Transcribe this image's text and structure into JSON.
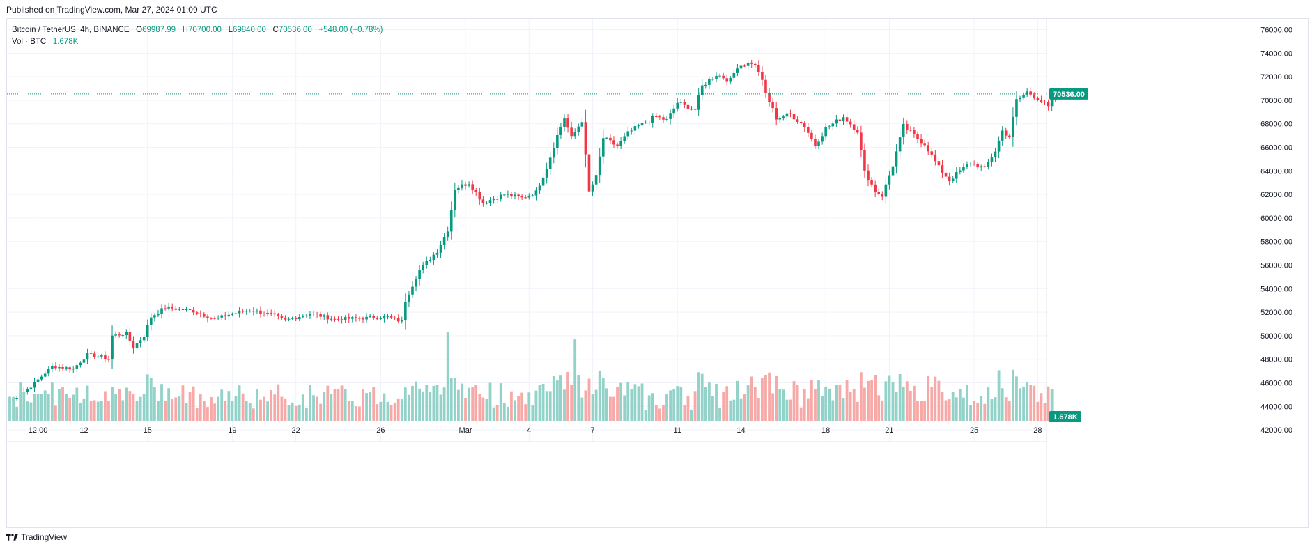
{
  "header": {
    "published_line": "Published on TradingView.com, Mar 27, 2024 01:09 UTC"
  },
  "legend": {
    "symbol": "Bitcoin / TetherUS, 4h, BINANCE",
    "open_label": "O",
    "open": "69987.99",
    "high_label": "H",
    "high": "70700.00",
    "low_label": "L",
    "low": "69840.00",
    "close_label": "C",
    "close": "70536.00",
    "change": "+548.00 (+0.78%)",
    "volume_label": "Vol · BTC",
    "volume": "1.678K"
  },
  "footer": {
    "brand": "TradingView"
  },
  "colors": {
    "up": "#089981",
    "down": "#f23645",
    "up_volume": "#92d2c8",
    "down_volume": "#f7a9a7",
    "grid": "#f0f3fa"
  },
  "chart_data": {
    "type": "candlestick",
    "interval": "4h",
    "price_range": [
      41000,
      76800
    ],
    "y_ticks": [
      42000,
      44000,
      46000,
      48000,
      50000,
      52000,
      54000,
      56000,
      58000,
      60000,
      62000,
      64000,
      66000,
      68000,
      70000,
      72000,
      74000,
      76000
    ],
    "y_tick_labels": [
      "42000.00",
      "44000.00",
      "46000.00",
      "48000.00",
      "50000.00",
      "52000.00",
      "54000.00",
      "56000.00",
      "58000.00",
      "60000.00",
      "62000.00",
      "64000.00",
      "66000.00",
      "68000.00",
      "70000.00",
      "72000.00",
      "74000.00",
      "76000.00"
    ],
    "x_ticks": [
      {
        "label": "12:00",
        "bar": 8
      },
      {
        "label": "12",
        "bar": 21
      },
      {
        "label": "15",
        "bar": 39
      },
      {
        "label": "19",
        "bar": 63
      },
      {
        "label": "22",
        "bar": 81
      },
      {
        "label": "26",
        "bar": 105
      },
      {
        "label": "Mar",
        "bar": 129
      },
      {
        "label": "4",
        "bar": 147
      },
      {
        "label": "7",
        "bar": 165
      },
      {
        "label": "11",
        "bar": 189
      },
      {
        "label": "14",
        "bar": 207
      },
      {
        "label": "18",
        "bar": 231
      },
      {
        "label": "21",
        "bar": 249
      },
      {
        "label": "25",
        "bar": 273
      },
      {
        "label": "28",
        "bar": 291
      }
    ],
    "last_price": 70536,
    "last_price_label": "70536.00",
    "last_volume_label": "1.678K",
    "anchors": [
      [
        0,
        44400
      ],
      [
        6,
        45700
      ],
      [
        12,
        47400
      ],
      [
        18,
        47200
      ],
      [
        22,
        48400
      ],
      [
        26,
        48200
      ],
      [
        28,
        48000
      ],
      [
        29,
        50000
      ],
      [
        33,
        50200
      ],
      [
        35,
        49000
      ],
      [
        38,
        50000
      ],
      [
        40,
        51600
      ],
      [
        44,
        52400
      ],
      [
        52,
        52100
      ],
      [
        58,
        51400
      ],
      [
        62,
        51800
      ],
      [
        68,
        52200
      ],
      [
        74,
        51800
      ],
      [
        78,
        51300
      ],
      [
        85,
        51900
      ],
      [
        92,
        51400
      ],
      [
        100,
        51500
      ],
      [
        107,
        51600
      ],
      [
        111,
        51200
      ],
      [
        112,
        53000
      ],
      [
        116,
        55600
      ],
      [
        121,
        57200
      ],
      [
        124,
        59000
      ],
      [
        126,
        62500
      ],
      [
        130,
        63000
      ],
      [
        134,
        61300
      ],
      [
        140,
        62000
      ],
      [
        145,
        61700
      ],
      [
        149,
        62200
      ],
      [
        152,
        64300
      ],
      [
        155,
        67000
      ],
      [
        157,
        68500
      ],
      [
        159,
        66800
      ],
      [
        162,
        68300
      ],
      [
        164,
        62200
      ],
      [
        166,
        63500
      ],
      [
        168,
        66800
      ],
      [
        172,
        66100
      ],
      [
        175,
        67200
      ],
      [
        178,
        67800
      ],
      [
        183,
        68600
      ],
      [
        186,
        68300
      ],
      [
        189,
        69800
      ],
      [
        194,
        69200
      ],
      [
        196,
        71200
      ],
      [
        200,
        72200
      ],
      [
        204,
        71700
      ],
      [
        206,
        72900
      ],
      [
        210,
        73200
      ],
      [
        212,
        72500
      ],
      [
        214,
        70600
      ],
      [
        217,
        68500
      ],
      [
        221,
        68800
      ],
      [
        225,
        67800
      ],
      [
        228,
        66200
      ],
      [
        231,
        67600
      ],
      [
        236,
        68600
      ],
      [
        240,
        67400
      ],
      [
        242,
        63900
      ],
      [
        245,
        62300
      ],
      [
        247,
        61900
      ],
      [
        250,
        64500
      ],
      [
        253,
        67800
      ],
      [
        256,
        67000
      ],
      [
        259,
        66300
      ],
      [
        263,
        64300
      ],
      [
        266,
        63200
      ],
      [
        269,
        64000
      ],
      [
        272,
        64700
      ],
      [
        276,
        64200
      ],
      [
        279,
        65700
      ],
      [
        281,
        67400
      ],
      [
        283,
        66900
      ],
      [
        285,
        70000
      ],
      [
        288,
        70700
      ],
      [
        291,
        70200
      ],
      [
        294,
        69400
      ],
      [
        296,
        70536
      ]
    ],
    "volume_range": [
      0,
      100
    ],
    "volume_note": "relative volume per bar, peaks near 29 Feb and 5 Mar"
  }
}
